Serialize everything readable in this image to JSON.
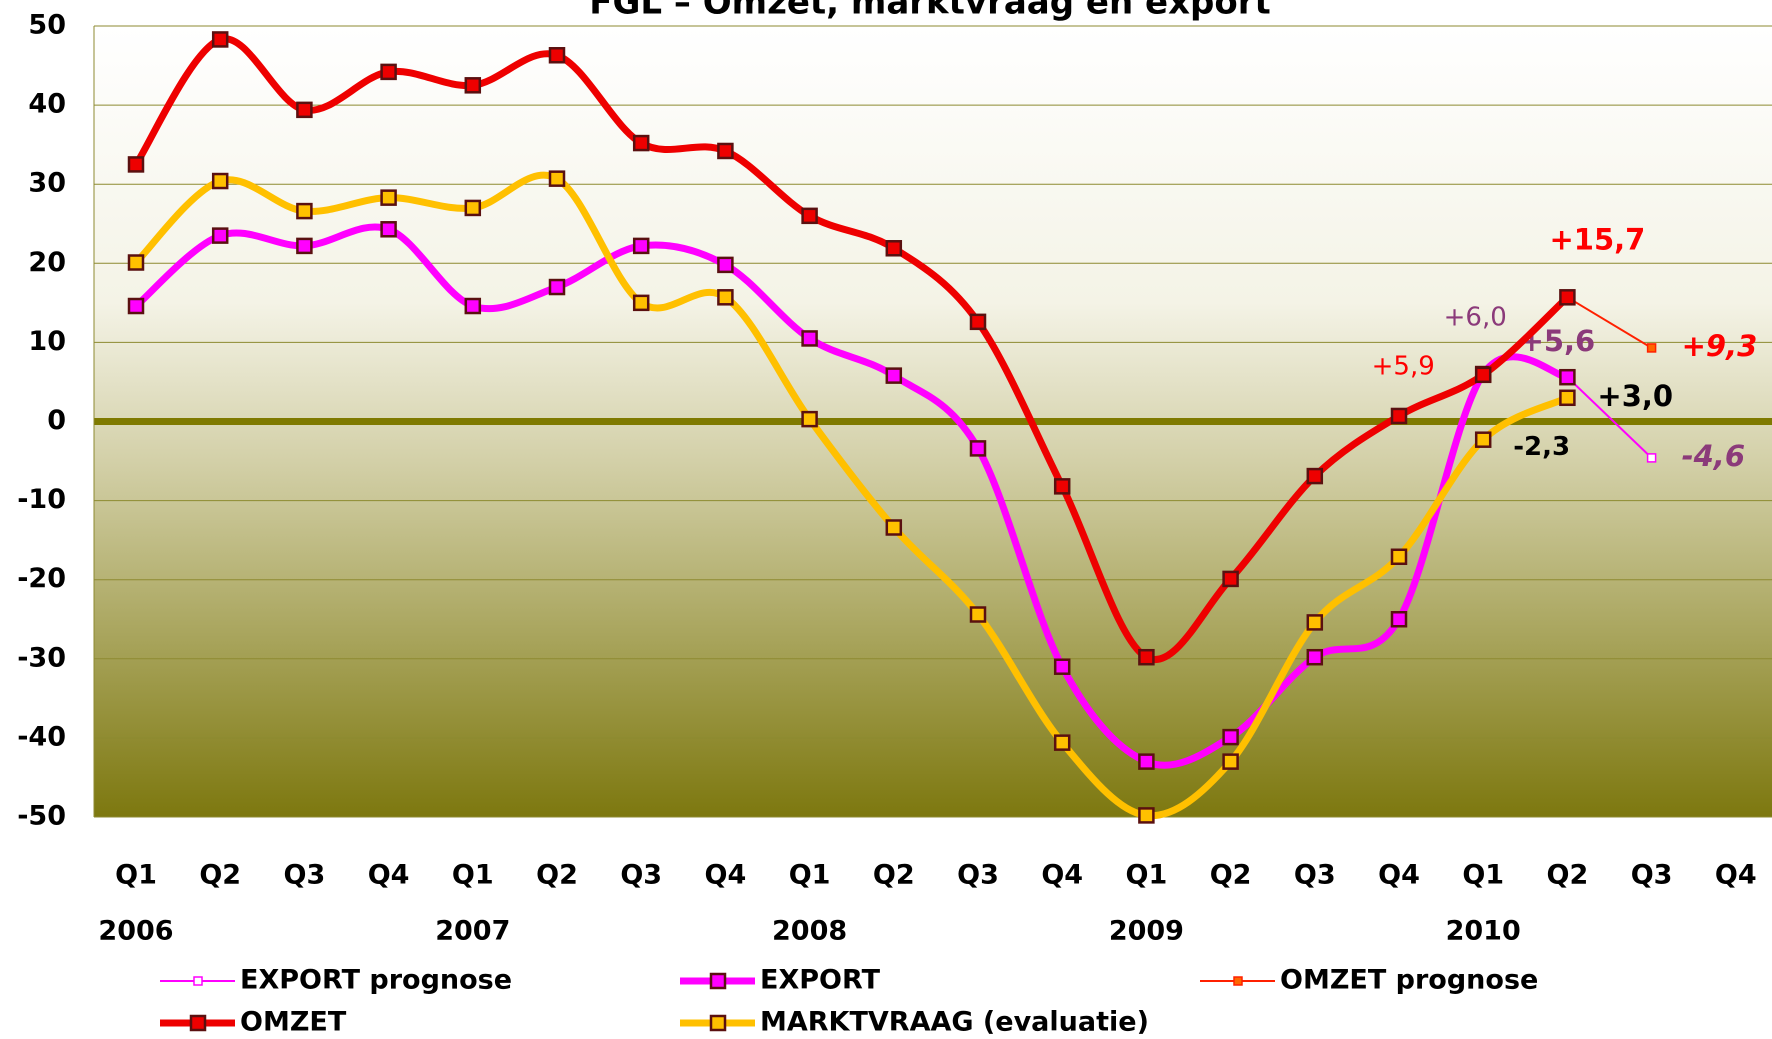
{
  "chart_data": {
    "type": "line",
    "title": "FGL – Omzet, marktvraag en export",
    "categories": [
      "Q1",
      "Q2",
      "Q3",
      "Q4",
      "Q1",
      "Q2",
      "Q3",
      "Q4",
      "Q1",
      "Q2",
      "Q3",
      "Q4",
      "Q1",
      "Q2",
      "Q3",
      "Q4",
      "Q1",
      "Q2",
      "Q3",
      "Q4"
    ],
    "years": [
      "2006",
      "2007",
      "2008",
      "2009",
      "2010"
    ],
    "ylim": [
      -50,
      50
    ],
    "yticks": [
      -50,
      -40,
      -30,
      -20,
      -10,
      0,
      10,
      20,
      30,
      40,
      50
    ],
    "grid": true,
    "series": [
      {
        "name": "EXPORT prognose",
        "color": "#ff00ff",
        "label_color": "#8b3a7a",
        "style": "forecast",
        "values": [
          null,
          null,
          null,
          null,
          null,
          null,
          null,
          null,
          null,
          null,
          null,
          null,
          null,
          null,
          null,
          null,
          null,
          5.6,
          -4.6,
          null
        ],
        "value_labels": [
          null,
          null,
          null,
          null,
          null,
          null,
          null,
          null,
          null,
          null,
          null,
          null,
          null,
          null,
          null,
          null,
          null,
          null,
          "-4,6",
          null
        ]
      },
      {
        "name": "EXPORT",
        "color": "#ff00ff",
        "label_color": "#8b3a7a",
        "style": "main",
        "values": [
          14.6,
          23.5,
          22.2,
          24.3,
          14.6,
          17.0,
          22.2,
          19.8,
          10.5,
          5.8,
          -3.4,
          -31.0,
          -43.0,
          -39.9,
          -29.8,
          -25.0,
          6.0,
          5.6,
          null,
          null
        ],
        "value_labels": [
          null,
          null,
          null,
          null,
          null,
          null,
          null,
          null,
          null,
          null,
          null,
          null,
          null,
          null,
          null,
          null,
          "+6,0",
          "+5,6",
          null,
          null
        ]
      },
      {
        "name": "OMZET prognose",
        "color": "#ff2000",
        "label_color": "#ff0000",
        "style": "forecast",
        "values": [
          null,
          null,
          null,
          null,
          null,
          null,
          null,
          null,
          null,
          null,
          null,
          null,
          null,
          null,
          null,
          null,
          null,
          15.7,
          9.3,
          null
        ],
        "value_labels": [
          null,
          null,
          null,
          null,
          null,
          null,
          null,
          null,
          null,
          null,
          null,
          null,
          null,
          null,
          null,
          null,
          null,
          null,
          "+9,3",
          null
        ]
      },
      {
        "name": "OMZET",
        "color": "#ee0000",
        "label_color": "#ff0000",
        "style": "main",
        "values": [
          32.5,
          48.3,
          39.4,
          44.2,
          42.5,
          46.3,
          35.2,
          34.2,
          26.0,
          21.9,
          12.6,
          -8.2,
          -29.8,
          -19.9,
          -6.9,
          0.7,
          5.9,
          15.7,
          null,
          null
        ],
        "value_labels": [
          null,
          null,
          null,
          null,
          null,
          null,
          null,
          null,
          null,
          null,
          null,
          null,
          null,
          null,
          null,
          null,
          "+5,9",
          "+15,7",
          null,
          null
        ]
      },
      {
        "name": "MARKTVRAAG (evaluatie)",
        "color": "#ffc000",
        "label_color": "#000000",
        "style": "main",
        "values": [
          20.1,
          30.4,
          26.6,
          28.3,
          27.0,
          30.7,
          15.0,
          15.7,
          0.3,
          -13.4,
          -24.4,
          -40.6,
          -49.8,
          -43.0,
          -25.4,
          -17.1,
          -2.3,
          3.0,
          null,
          null
        ],
        "value_labels": [
          null,
          null,
          null,
          null,
          null,
          null,
          null,
          null,
          null,
          null,
          null,
          null,
          null,
          null,
          null,
          null,
          "-2,3",
          "+3,0",
          null,
          null
        ]
      }
    ]
  }
}
